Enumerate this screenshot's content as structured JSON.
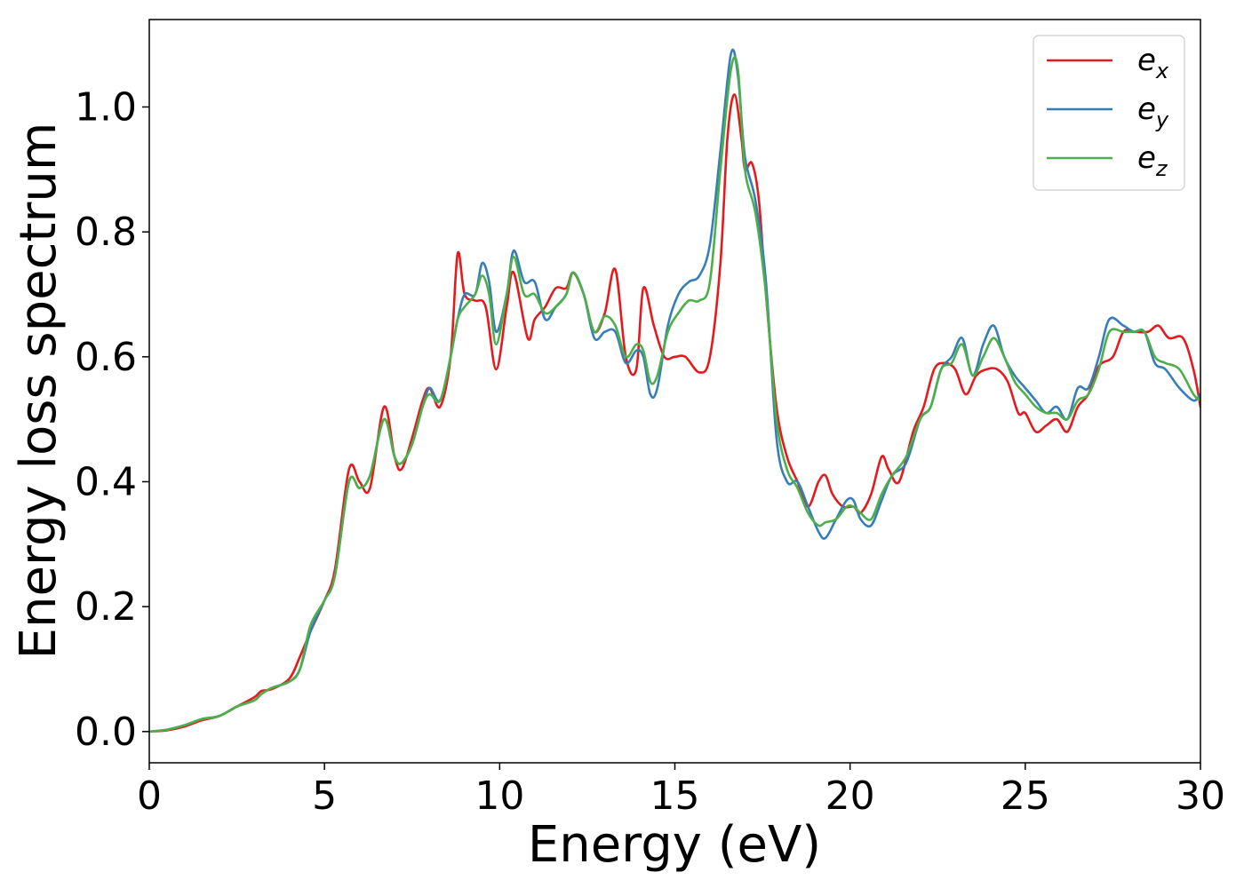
{
  "chart_data": {
    "type": "line",
    "xlabel": "Energy (eV)",
    "ylabel": "Energy loss spectrum",
    "xlim": [
      0,
      30
    ],
    "ylim": [
      -0.05,
      1.14
    ],
    "xticks": [
      0,
      5,
      10,
      15,
      20,
      25,
      30
    ],
    "xtick_labels": [
      "0",
      "5",
      "10",
      "15",
      "20",
      "25",
      "30"
    ],
    "yticks": [
      0.0,
      0.2,
      0.4,
      0.6,
      0.8,
      1.0
    ],
    "ytick_labels": [
      "0.0",
      "0.2",
      "0.4",
      "0.6",
      "0.8",
      "1.0"
    ],
    "grid": false,
    "legend_position": "top-right",
    "series": [
      {
        "name": "e_x",
        "label_main": "e",
        "label_sub": "x",
        "color": "#e41a1c",
        "x": [
          0,
          0.5,
          1,
          1.5,
          2,
          2.5,
          3,
          3.2,
          3.5,
          4,
          4.3,
          4.6,
          5,
          5.3,
          5.7,
          6,
          6.3,
          6.7,
          7,
          7.2,
          7.5,
          7.8,
          8,
          8.3,
          8.6,
          8.8,
          9,
          9.3,
          9.6,
          9.9,
          10.2,
          10.4,
          10.8,
          11,
          11.3,
          11.6,
          11.9,
          12.1,
          12.4,
          12.7,
          13,
          13.3,
          13.6,
          13.9,
          14.1,
          14.4,
          14.7,
          15,
          15.3,
          15.7,
          16.0,
          16.3,
          16.5,
          16.7,
          16.9,
          17.0,
          17.2,
          17.4,
          17.6,
          17.9,
          18.2,
          18.5,
          18.8,
          19.1,
          19.3,
          19.5,
          19.8,
          20.1,
          20.3,
          20.6,
          20.9,
          21.1,
          21.4,
          21.8,
          22.1,
          22.4,
          22.7,
          23.0,
          23.3,
          23.6,
          23.9,
          24.2,
          24.5,
          24.8,
          25.0,
          25.3,
          25.6,
          25.9,
          26.2,
          26.5,
          26.8,
          27.1,
          27.5,
          27.8,
          28.1,
          28.5,
          28.8,
          29.1,
          29.5,
          29.8,
          30
        ],
        "y": [
          0,
          0.002,
          0.008,
          0.018,
          0.025,
          0.04,
          0.055,
          0.065,
          0.068,
          0.085,
          0.12,
          0.16,
          0.21,
          0.26,
          0.42,
          0.4,
          0.39,
          0.52,
          0.44,
          0.42,
          0.47,
          0.53,
          0.55,
          0.52,
          0.6,
          0.765,
          0.7,
          0.69,
          0.68,
          0.58,
          0.68,
          0.735,
          0.63,
          0.66,
          0.68,
          0.71,
          0.71,
          0.735,
          0.7,
          0.64,
          0.67,
          0.74,
          0.6,
          0.58,
          0.71,
          0.65,
          0.6,
          0.6,
          0.6,
          0.575,
          0.6,
          0.75,
          0.95,
          1.02,
          0.95,
          0.9,
          0.91,
          0.85,
          0.7,
          0.52,
          0.44,
          0.4,
          0.36,
          0.4,
          0.41,
          0.38,
          0.36,
          0.36,
          0.35,
          0.38,
          0.44,
          0.42,
          0.4,
          0.48,
          0.52,
          0.58,
          0.59,
          0.58,
          0.54,
          0.57,
          0.58,
          0.58,
          0.56,
          0.51,
          0.51,
          0.48,
          0.49,
          0.5,
          0.48,
          0.52,
          0.54,
          0.585,
          0.6,
          0.64,
          0.64,
          0.64,
          0.65,
          0.63,
          0.63,
          0.58,
          0.52
        ]
      },
      {
        "name": "e_y",
        "label_main": "e",
        "label_sub": "y",
        "color": "#377eb8",
        "x": [
          0,
          0.5,
          1,
          1.5,
          2,
          2.5,
          3,
          3.2,
          3.5,
          4,
          4.3,
          4.6,
          5,
          5.3,
          5.7,
          6,
          6.3,
          6.7,
          7,
          7.2,
          7.5,
          7.8,
          8,
          8.3,
          8.6,
          8.8,
          9,
          9.3,
          9.5,
          9.7,
          9.9,
          10.2,
          10.4,
          10.7,
          11,
          11.3,
          11.6,
          11.9,
          12.1,
          12.4,
          12.7,
          13,
          13.3,
          13.6,
          13.9,
          14.1,
          14.3,
          14.5,
          14.8,
          15.1,
          15.4,
          15.7,
          16.0,
          16.3,
          16.6,
          16.8,
          17.0,
          17.3,
          17.6,
          17.9,
          18.2,
          18.5,
          18.8,
          19.1,
          19.3,
          19.6,
          19.9,
          20.1,
          20.3,
          20.6,
          20.9,
          21.2,
          21.6,
          22.0,
          22.3,
          22.6,
          22.9,
          23.2,
          23.5,
          23.8,
          24.1,
          24.4,
          24.7,
          25.0,
          25.3,
          25.6,
          25.9,
          26.2,
          26.5,
          26.8,
          27.1,
          27.4,
          27.8,
          28.1,
          28.4,
          28.7,
          29.0,
          29.4,
          29.8,
          30
        ],
        "y": [
          0,
          0.003,
          0.01,
          0.02,
          0.025,
          0.04,
          0.05,
          0.06,
          0.07,
          0.08,
          0.1,
          0.16,
          0.21,
          0.25,
          0.4,
          0.39,
          0.41,
          0.5,
          0.44,
          0.43,
          0.46,
          0.52,
          0.55,
          0.53,
          0.6,
          0.66,
          0.7,
          0.7,
          0.75,
          0.72,
          0.64,
          0.7,
          0.77,
          0.72,
          0.72,
          0.66,
          0.68,
          0.7,
          0.735,
          0.7,
          0.63,
          0.64,
          0.64,
          0.59,
          0.61,
          0.6,
          0.54,
          0.55,
          0.65,
          0.7,
          0.72,
          0.73,
          0.78,
          0.93,
          1.085,
          1.05,
          0.92,
          0.85,
          0.72,
          0.47,
          0.4,
          0.4,
          0.36,
          0.32,
          0.31,
          0.34,
          0.37,
          0.37,
          0.34,
          0.33,
          0.37,
          0.41,
          0.43,
          0.5,
          0.52,
          0.58,
          0.6,
          0.63,
          0.57,
          0.62,
          0.65,
          0.6,
          0.57,
          0.55,
          0.53,
          0.51,
          0.52,
          0.5,
          0.55,
          0.55,
          0.6,
          0.66,
          0.65,
          0.64,
          0.64,
          0.59,
          0.58,
          0.55,
          0.53,
          0.54
        ]
      },
      {
        "name": "e_z",
        "label_main": "e",
        "label_sub": "z",
        "color": "#4daf4a",
        "x": [
          0,
          0.5,
          1,
          1.5,
          2,
          2.5,
          3,
          3.2,
          3.5,
          4,
          4.3,
          4.6,
          5,
          5.3,
          5.7,
          6,
          6.3,
          6.7,
          7,
          7.2,
          7.5,
          7.8,
          8,
          8.3,
          8.6,
          8.8,
          9,
          9.3,
          9.5,
          9.7,
          9.9,
          10.2,
          10.4,
          10.7,
          11,
          11.3,
          11.6,
          11.9,
          12.1,
          12.4,
          12.7,
          13,
          13.3,
          13.6,
          13.9,
          14.1,
          14.3,
          14.5,
          14.8,
          15.1,
          15.4,
          15.7,
          16.0,
          16.3,
          16.6,
          16.8,
          17.0,
          17.3,
          17.6,
          17.9,
          18.2,
          18.5,
          18.8,
          19.1,
          19.3,
          19.6,
          19.9,
          20.1,
          20.3,
          20.6,
          20.9,
          21.2,
          21.6,
          22.0,
          22.3,
          22.6,
          22.9,
          23.2,
          23.5,
          23.8,
          24.1,
          24.4,
          24.7,
          25.0,
          25.3,
          25.6,
          25.9,
          26.2,
          26.5,
          26.8,
          27.1,
          27.4,
          27.8,
          28.1,
          28.4,
          28.7,
          29.0,
          29.4,
          29.8,
          30
        ],
        "y": [
          0,
          0.003,
          0.01,
          0.02,
          0.025,
          0.04,
          0.05,
          0.06,
          0.07,
          0.08,
          0.1,
          0.17,
          0.21,
          0.25,
          0.4,
          0.39,
          0.41,
          0.5,
          0.44,
          0.43,
          0.46,
          0.52,
          0.54,
          0.53,
          0.6,
          0.66,
          0.68,
          0.7,
          0.73,
          0.7,
          0.62,
          0.7,
          0.76,
          0.7,
          0.7,
          0.67,
          0.68,
          0.7,
          0.735,
          0.7,
          0.64,
          0.665,
          0.65,
          0.6,
          0.62,
          0.61,
          0.56,
          0.57,
          0.64,
          0.67,
          0.69,
          0.69,
          0.72,
          0.9,
          1.06,
          1.06,
          0.9,
          0.83,
          0.7,
          0.5,
          0.42,
          0.39,
          0.35,
          0.33,
          0.335,
          0.34,
          0.36,
          0.36,
          0.35,
          0.34,
          0.38,
          0.41,
          0.44,
          0.5,
          0.52,
          0.58,
          0.59,
          0.62,
          0.57,
          0.6,
          0.63,
          0.6,
          0.56,
          0.54,
          0.52,
          0.51,
          0.51,
          0.5,
          0.53,
          0.54,
          0.58,
          0.64,
          0.64,
          0.64,
          0.64,
          0.6,
          0.59,
          0.58,
          0.54,
          0.53
        ]
      }
    ]
  }
}
